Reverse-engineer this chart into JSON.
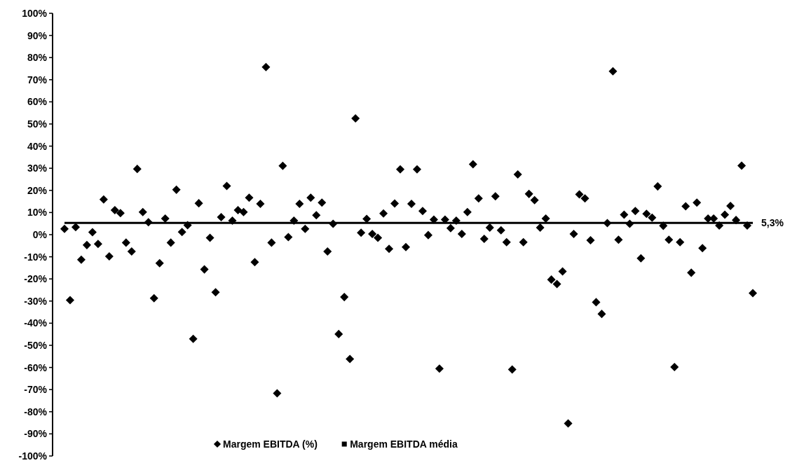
{
  "chart_data": {
    "type": "scatter",
    "categories": [
      null,
      null,
      null,
      null,
      null,
      null,
      null,
      null,
      null,
      null,
      null,
      null,
      null,
      null,
      null,
      null,
      null,
      null,
      null,
      null,
      null,
      null,
      null,
      null,
      null,
      null,
      null,
      null,
      null,
      null,
      null,
      null,
      null,
      null,
      null,
      null,
      null,
      null,
      null,
      null,
      null,
      null,
      null,
      null,
      null,
      null,
      null,
      null,
      null,
      null,
      null,
      null,
      null,
      null,
      null,
      null,
      null,
      null,
      null,
      null,
      null,
      null,
      null,
      null,
      null,
      null,
      null,
      null,
      null,
      null,
      null,
      null,
      null,
      null,
      null,
      null,
      null,
      null,
      null,
      null,
      null,
      null,
      null,
      null,
      null,
      null,
      null,
      null,
      null,
      null,
      null,
      null,
      null,
      null,
      null,
      null,
      null,
      null,
      null,
      null,
      null,
      null,
      null,
      null,
      null,
      null,
      null,
      null,
      null,
      null,
      null,
      null,
      null,
      null,
      null,
      null,
      null,
      null,
      null,
      null,
      null,
      null,
      null,
      null
    ],
    "series": [
      {
        "name": "Margem EBITDA (%)",
        "color": "#000000",
        "marker": "diamond",
        "values": [
          2.6,
          -29.6,
          3.4,
          -11.3,
          -4.7,
          1.1,
          -4.2,
          15.9,
          -9.8,
          11.1,
          9.7,
          -3.6,
          -7.6,
          29.7,
          10.2,
          5.6,
          -28.7,
          -12.9,
          7.3,
          -3.6,
          20.3,
          1.2,
          4.3,
          -47.1,
          14.2,
          -15.7,
          -1.4,
          -26.0,
          7.9,
          22.0,
          6.3,
          11.1,
          10.2,
          16.7,
          -12.4,
          13.9,
          75.7,
          -3.6,
          -71.7,
          31.1,
          -1.1,
          6.3,
          13.9,
          2.6,
          16.7,
          8.8,
          14.5,
          -7.6,
          4.9,
          -44.9,
          -28.2,
          -56.2,
          52.5,
          0.9,
          7.1,
          0.3,
          -1.4,
          9.6,
          -6.4,
          14.1,
          29.5,
          -5.6,
          13.9,
          29.5,
          10.7,
          -0.2,
          6.8,
          -60.5,
          6.8,
          2.9,
          6.3,
          0.3,
          10.2,
          31.8,
          16.4,
          -1.9,
          3.2,
          17.3,
          2.0,
          -3.4,
          -60.9,
          27.2,
          -3.4,
          18.4,
          15.6,
          3.2,
          7.3,
          -20.3,
          -22.3,
          -16.6,
          -85.3,
          0.3,
          18.2,
          16.4,
          -2.5,
          -30.5,
          -35.8,
          5.2,
          73.8,
          -2.3,
          9.0,
          4.9,
          10.7,
          -10.7,
          9.4,
          7.7,
          21.8,
          4.0,
          -2.3,
          -59.8,
          -3.4,
          12.8,
          -17.2,
          14.5,
          -6.1,
          7.3,
          7.3,
          4.1,
          9.0,
          13.0,
          6.6,
          31.2,
          4.1,
          -26.4
        ]
      },
      {
        "name": "Margem EBITDA média",
        "color": "#000000",
        "type": "line",
        "marker": "none",
        "values": [
          5.3,
          5.3,
          5.3,
          5.3,
          5.3,
          5.3,
          5.3,
          5.3,
          5.3,
          5.3,
          5.3,
          5.3,
          5.3,
          5.3,
          5.3,
          5.3,
          5.3,
          5.3,
          5.3,
          5.3,
          5.3,
          5.3,
          5.3,
          5.3,
          5.3,
          5.3,
          5.3,
          5.3,
          5.3,
          5.3,
          5.3,
          5.3,
          5.3,
          5.3,
          5.3,
          5.3,
          5.3,
          5.3,
          5.3,
          5.3,
          5.3,
          5.3,
          5.3,
          5.3,
          5.3,
          5.3,
          5.3,
          5.3,
          5.3,
          5.3,
          5.3,
          5.3,
          5.3,
          5.3,
          5.3,
          5.3,
          5.3,
          5.3,
          5.3,
          5.3,
          5.3,
          5.3,
          5.3,
          5.3,
          5.3,
          5.3,
          5.3,
          5.3,
          5.3,
          5.3,
          5.3,
          5.3,
          5.3,
          5.3,
          5.3,
          5.3,
          5.3,
          5.3,
          5.3,
          5.3,
          5.3,
          5.3,
          5.3,
          5.3,
          5.3,
          5.3,
          5.3,
          5.3,
          5.3,
          5.3,
          5.3,
          5.3,
          5.3,
          5.3,
          5.3,
          5.3,
          5.3,
          5.3,
          5.3,
          5.3,
          5.3,
          5.3,
          5.3,
          5.3,
          5.3,
          5.3,
          5.3,
          5.3,
          5.3,
          5.3,
          5.3,
          5.3,
          5.3,
          5.3,
          5.3,
          5.3,
          5.3,
          5.3,
          5.3,
          5.3,
          5.3,
          5.3,
          5.3,
          5.3
        ]
      }
    ],
    "ylim": [
      -100,
      100
    ],
    "yticks": [
      {
        "value": 100,
        "label": "100%"
      },
      {
        "value": 90,
        "label": "90%"
      },
      {
        "value": 80,
        "label": "80%"
      },
      {
        "value": 70,
        "label": "70%"
      },
      {
        "value": 60,
        "label": "60%"
      },
      {
        "value": 50,
        "label": "50%"
      },
      {
        "value": 40,
        "label": "40%"
      },
      {
        "value": 30,
        "label": "30%"
      },
      {
        "value": 20,
        "label": "20%"
      },
      {
        "value": 10,
        "label": "10%"
      },
      {
        "value": 0,
        "label": "0%"
      },
      {
        "value": -10,
        "label": "-10%"
      },
      {
        "value": -20,
        "label": "-20%"
      },
      {
        "value": -30,
        "label": "-30%"
      },
      {
        "value": -40,
        "label": "-40%"
      },
      {
        "value": -50,
        "label": "-50%"
      },
      {
        "value": -60,
        "label": "-60%"
      },
      {
        "value": -70,
        "label": "-70%"
      },
      {
        "value": -80,
        "label": "-80%"
      },
      {
        "value": -90,
        "label": "-90%"
      },
      {
        "value": -100,
        "label": "-100%"
      }
    ],
    "legend": "bottom",
    "annotations": [
      "5,3%"
    ]
  }
}
